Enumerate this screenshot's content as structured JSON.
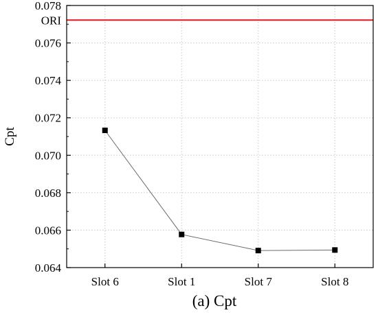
{
  "chart_data": {
    "type": "line",
    "caption": "(a) Cpt",
    "ylabel": "Cpt",
    "xlabel": "",
    "categories": [
      "Slot 6",
      "Slot 1",
      "Slot 7",
      "Slot 8"
    ],
    "series": [
      {
        "values": [
          0.07133,
          0.06577,
          0.06491,
          0.06494
        ]
      }
    ],
    "reference_line": {
      "label": "ORI",
      "value": 0.07722,
      "color": "#e8141b"
    },
    "ylim": [
      0.064,
      0.078
    ],
    "yticks": [
      "0.064",
      "0.066",
      "0.068",
      "0.070",
      "0.072",
      "0.074",
      "0.076",
      "0.078"
    ],
    "grid": true,
    "colors": {
      "line": "#6b6b6b",
      "marker": "#000000",
      "grid": "#c8c8c8"
    }
  }
}
